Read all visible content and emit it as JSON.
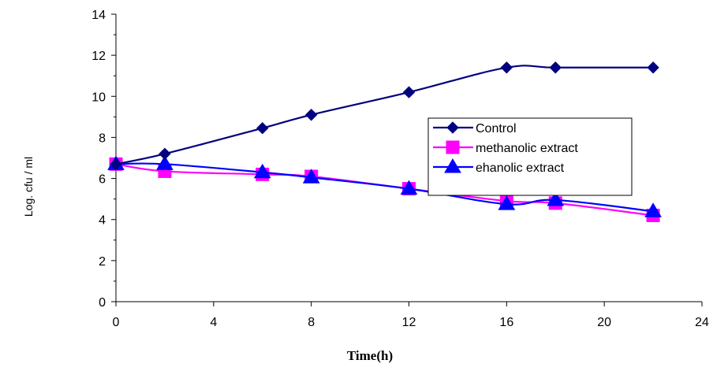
{
  "chart_data": {
    "type": "line",
    "title": "",
    "xlabel": "Time(h)",
    "ylabel": "Log. cfu / ml",
    "xlim": [
      0,
      24
    ],
    "ylim": [
      0,
      14
    ],
    "xticks": [
      0,
      4,
      8,
      12,
      16,
      20,
      24
    ],
    "yticks": [
      0,
      2,
      4,
      6,
      8,
      10,
      12,
      14
    ],
    "grid": false,
    "legend_position": "right",
    "series": [
      {
        "name": "Control",
        "color": "#000080",
        "marker": "diamond",
        "x": [
          0,
          2,
          6,
          8,
          12,
          16,
          18,
          22
        ],
        "y": [
          6.7,
          7.2,
          8.45,
          9.1,
          10.2,
          11.4,
          11.4,
          11.4
        ]
      },
      {
        "name": "methanolic extract",
        "color": "#ff00ff",
        "marker": "square",
        "x": [
          0,
          2,
          6,
          8,
          12,
          16,
          18,
          22
        ],
        "y": [
          6.7,
          6.35,
          6.2,
          6.1,
          5.5,
          4.9,
          4.8,
          4.2
        ]
      },
      {
        "name": "ehanolic extract",
        "color": "#0000ff",
        "marker": "triangle",
        "x": [
          0,
          2,
          6,
          8,
          12,
          16,
          18,
          22
        ],
        "y": [
          6.7,
          6.7,
          6.3,
          6.05,
          5.5,
          4.75,
          4.95,
          4.4
        ]
      }
    ]
  }
}
